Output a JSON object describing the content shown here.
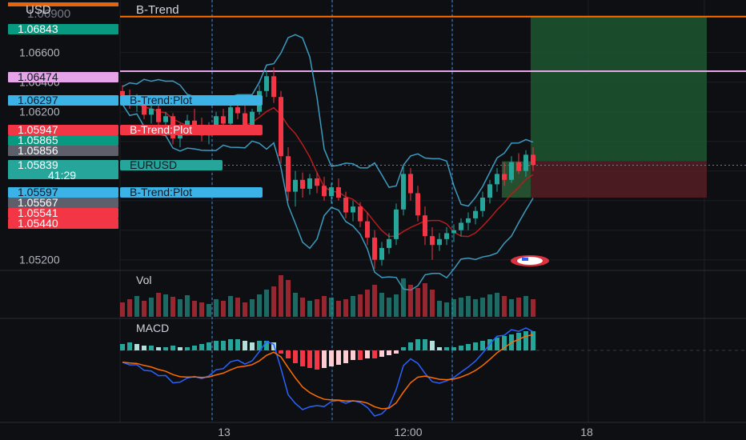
{
  "header": {
    "currency": "USD",
    "indicator_name": "B-Trend"
  },
  "colors": {
    "background": "#0e0f13",
    "grid": "#1c1f27",
    "up": "#26a69a",
    "down": "#f23645",
    "band": "#3b9bbf",
    "trend_line": "#b71c1c",
    "level_orange": "#ff6d00",
    "level_pink": "#e5a3e8",
    "macd_line": "#2962ff",
    "signal_line": "#ff6d00",
    "dotted_vertical": "#4a90d9",
    "target_zone": "#1e5a32",
    "stop_zone": "#5a1e26"
  },
  "price_axis": {
    "ticks": [
      "1.06600",
      "1.06400",
      "1.06200",
      "1.05200"
    ],
    "top_partial_label": "1.06900"
  },
  "price_labels": [
    {
      "text": "1.06843",
      "color": "#089981",
      "text_color": "#ffffff",
      "price": 1.06843
    },
    {
      "text": "1.06474",
      "color": "#e5a3e8",
      "text_color": "#131722",
      "price": 1.06474
    },
    {
      "text": "1.06297",
      "color": "#3bb3e6",
      "text_color": "#131722",
      "price": 1.06297,
      "tag": "B-Trend:Plot",
      "tag_color": "#3bb3e6"
    },
    {
      "text": "1.05947",
      "color": "#f23645",
      "text_color": "#ffffff",
      "price": 1.05947,
      "tag": "B-Trend:Plot",
      "tag_color": "#f23645"
    },
    {
      "text": "1.05865",
      "color": "#089981",
      "text_color": "#ffffff",
      "price": 1.05865
    },
    {
      "text": "1.05856",
      "color": "#5d606b",
      "text_color": "#ffffff",
      "price": 1.05856
    },
    {
      "text": "1.05839",
      "color": "#26a69a",
      "text_color": "#ffffff",
      "price": 1.05839,
      "tag": "EURUSD",
      "tag_color": "#26a69a",
      "countdown": "41:29"
    },
    {
      "text": "1.05597",
      "color": "#3bb3e6",
      "text_color": "#131722",
      "price": 1.05597,
      "tag": "B-Trend:Plot",
      "tag_color": "#3bb3e6"
    },
    {
      "text": "1.05567",
      "color": "#5d606b",
      "text_color": "#ffffff",
      "price": 1.05567
    },
    {
      "text": "1.05541",
      "color": "#f23645",
      "text_color": "#ffffff",
      "price": 1.05541
    },
    {
      "text": "1.05440",
      "color": "#f23645",
      "text_color": "#ffffff",
      "price": 1.0544
    }
  ],
  "panes": {
    "volume_label": "Vol",
    "macd_label": "MACD"
  },
  "time_axis": {
    "ticks": [
      "13",
      "12:00",
      "18"
    ]
  },
  "chart_data": {
    "type": "candlestick",
    "symbol": "EURUSD",
    "ylim": [
      1.0505,
      1.0692
    ],
    "ohlc": [
      [
        1.0634,
        1.0638,
        1.0628,
        1.0631
      ],
      [
        1.0631,
        1.0635,
        1.0622,
        1.0626
      ],
      [
        1.0626,
        1.0632,
        1.062,
        1.0629
      ],
      [
        1.0629,
        1.063,
        1.0615,
        1.0618
      ],
      [
        1.0618,
        1.0625,
        1.0612,
        1.0622
      ],
      [
        1.0622,
        1.0626,
        1.061,
        1.0613
      ],
      [
        1.0613,
        1.062,
        1.0605,
        1.0617
      ],
      [
        1.0617,
        1.0619,
        1.0598,
        1.0602
      ],
      [
        1.0602,
        1.0612,
        1.0596,
        1.0609
      ],
      [
        1.0609,
        1.0618,
        1.0604,
        1.0614
      ],
      [
        1.0614,
        1.0622,
        1.0608,
        1.0611
      ],
      [
        1.0611,
        1.0616,
        1.06,
        1.0604
      ],
      [
        1.0604,
        1.0613,
        1.0598,
        1.061
      ],
      [
        1.061,
        1.062,
        1.0606,
        1.0617
      ],
      [
        1.0617,
        1.0622,
        1.0609,
        1.0612
      ],
      [
        1.0612,
        1.0626,
        1.0608,
        1.0623
      ],
      [
        1.0623,
        1.063,
        1.0615,
        1.0619
      ],
      [
        1.0619,
        1.0624,
        1.0606,
        1.061
      ],
      [
        1.061,
        1.0622,
        1.0607,
        1.062
      ],
      [
        1.062,
        1.0638,
        1.0618,
        1.0634
      ],
      [
        1.0634,
        1.0648,
        1.063,
        1.0644
      ],
      [
        1.0644,
        1.065,
        1.0626,
        1.063
      ],
      [
        1.063,
        1.0634,
        1.0585,
        1.059
      ],
      [
        1.059,
        1.0596,
        1.056,
        1.0566
      ],
      [
        1.0566,
        1.058,
        1.0556,
        1.0574
      ],
      [
        1.0574,
        1.0579,
        1.0562,
        1.0568
      ],
      [
        1.0568,
        1.0578,
        1.0564,
        1.0575
      ],
      [
        1.0575,
        1.0579,
        1.0565,
        1.057
      ],
      [
        1.057,
        1.0576,
        1.056,
        1.0563
      ],
      [
        1.0563,
        1.0572,
        1.0558,
        1.0569
      ],
      [
        1.0569,
        1.0575,
        1.056,
        1.0562
      ],
      [
        1.0562,
        1.0566,
        1.0548,
        1.0552
      ],
      [
        1.0552,
        1.056,
        1.0546,
        1.0556
      ],
      [
        1.0556,
        1.0559,
        1.0542,
        1.0546
      ],
      [
        1.0546,
        1.0552,
        1.053,
        1.0535
      ],
      [
        1.0535,
        1.054,
        1.0514,
        1.052
      ],
      [
        1.052,
        1.0532,
        1.0516,
        1.0528
      ],
      [
        1.0528,
        1.0538,
        1.0524,
        1.0534
      ],
      [
        1.0534,
        1.0558,
        1.053,
        1.0554
      ],
      [
        1.0554,
        1.0584,
        1.055,
        1.0578
      ],
      [
        1.0578,
        1.0582,
        1.056,
        1.0565
      ],
      [
        1.0565,
        1.057,
        1.0546,
        1.055
      ],
      [
        1.055,
        1.0556,
        1.053,
        1.0536
      ],
      [
        1.0536,
        1.0542,
        1.052,
        1.053
      ],
      [
        1.053,
        1.0538,
        1.0526,
        1.0534
      ],
      [
        1.0534,
        1.0542,
        1.053,
        1.0538
      ],
      [
        1.0538,
        1.0544,
        1.0532,
        1.054
      ],
      [
        1.054,
        1.0548,
        1.0536,
        1.0545
      ],
      [
        1.0545,
        1.0552,
        1.054,
        1.0548
      ],
      [
        1.0548,
        1.0556,
        1.0544,
        1.0553
      ],
      [
        1.0553,
        1.0566,
        1.0549,
        1.0562
      ],
      [
        1.0562,
        1.0574,
        1.0558,
        1.0571
      ],
      [
        1.0571,
        1.0582,
        1.0566,
        1.0578
      ],
      [
        1.0578,
        1.0586,
        1.057,
        1.0574
      ],
      [
        1.0574,
        1.059,
        1.0572,
        1.0586
      ],
      [
        1.0586,
        1.0592,
        1.0578,
        1.058
      ],
      [
        1.058,
        1.0594,
        1.0576,
        1.0591
      ],
      [
        1.0591,
        1.0596,
        1.058,
        1.0584
      ]
    ],
    "volume": [
      18,
      22,
      26,
      20,
      24,
      30,
      28,
      25,
      22,
      27,
      20,
      18,
      16,
      22,
      20,
      26,
      24,
      18,
      22,
      28,
      34,
      38,
      52,
      46,
      30,
      24,
      20,
      22,
      26,
      24,
      20,
      22,
      26,
      28,
      34,
      40,
      30,
      24,
      28,
      48,
      40,
      36,
      42,
      34,
      20,
      18,
      22,
      24,
      26,
      22,
      24,
      28,
      30,
      26,
      22,
      24,
      26,
      22
    ],
    "macd_histogram": [
      4,
      5,
      4,
      3,
      3,
      2,
      2,
      3,
      2,
      2,
      3,
      4,
      5,
      6,
      6,
      7,
      7,
      6,
      5,
      6,
      6,
      5,
      -2,
      -5,
      -8,
      -10,
      -11,
      -12,
      -11,
      -10,
      -9,
      -8,
      -6,
      -6,
      -5,
      -5,
      -4,
      -3,
      -2,
      2,
      5,
      7,
      7,
      6,
      2,
      2,
      2,
      3,
      4,
      5,
      6,
      7,
      8,
      9,
      10,
      11,
      12,
      12
    ],
    "annotations": [
      "B-Trend:Plot",
      "EURUSD"
    ]
  }
}
